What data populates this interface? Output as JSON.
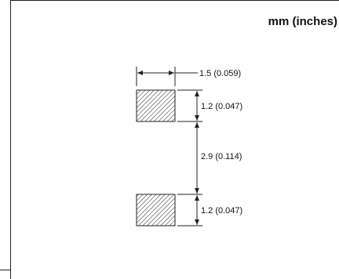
{
  "units_label": "mm (inches)",
  "dimensions": {
    "pad_width": "1.5 (0.059)",
    "pad_height_top": "1.2 (0.047)",
    "pad_gap": "2.9 (0.114)",
    "pad_height_bottom": "1.2 (0.047)"
  },
  "colors": {
    "line": "#222222",
    "text": "#111111"
  }
}
